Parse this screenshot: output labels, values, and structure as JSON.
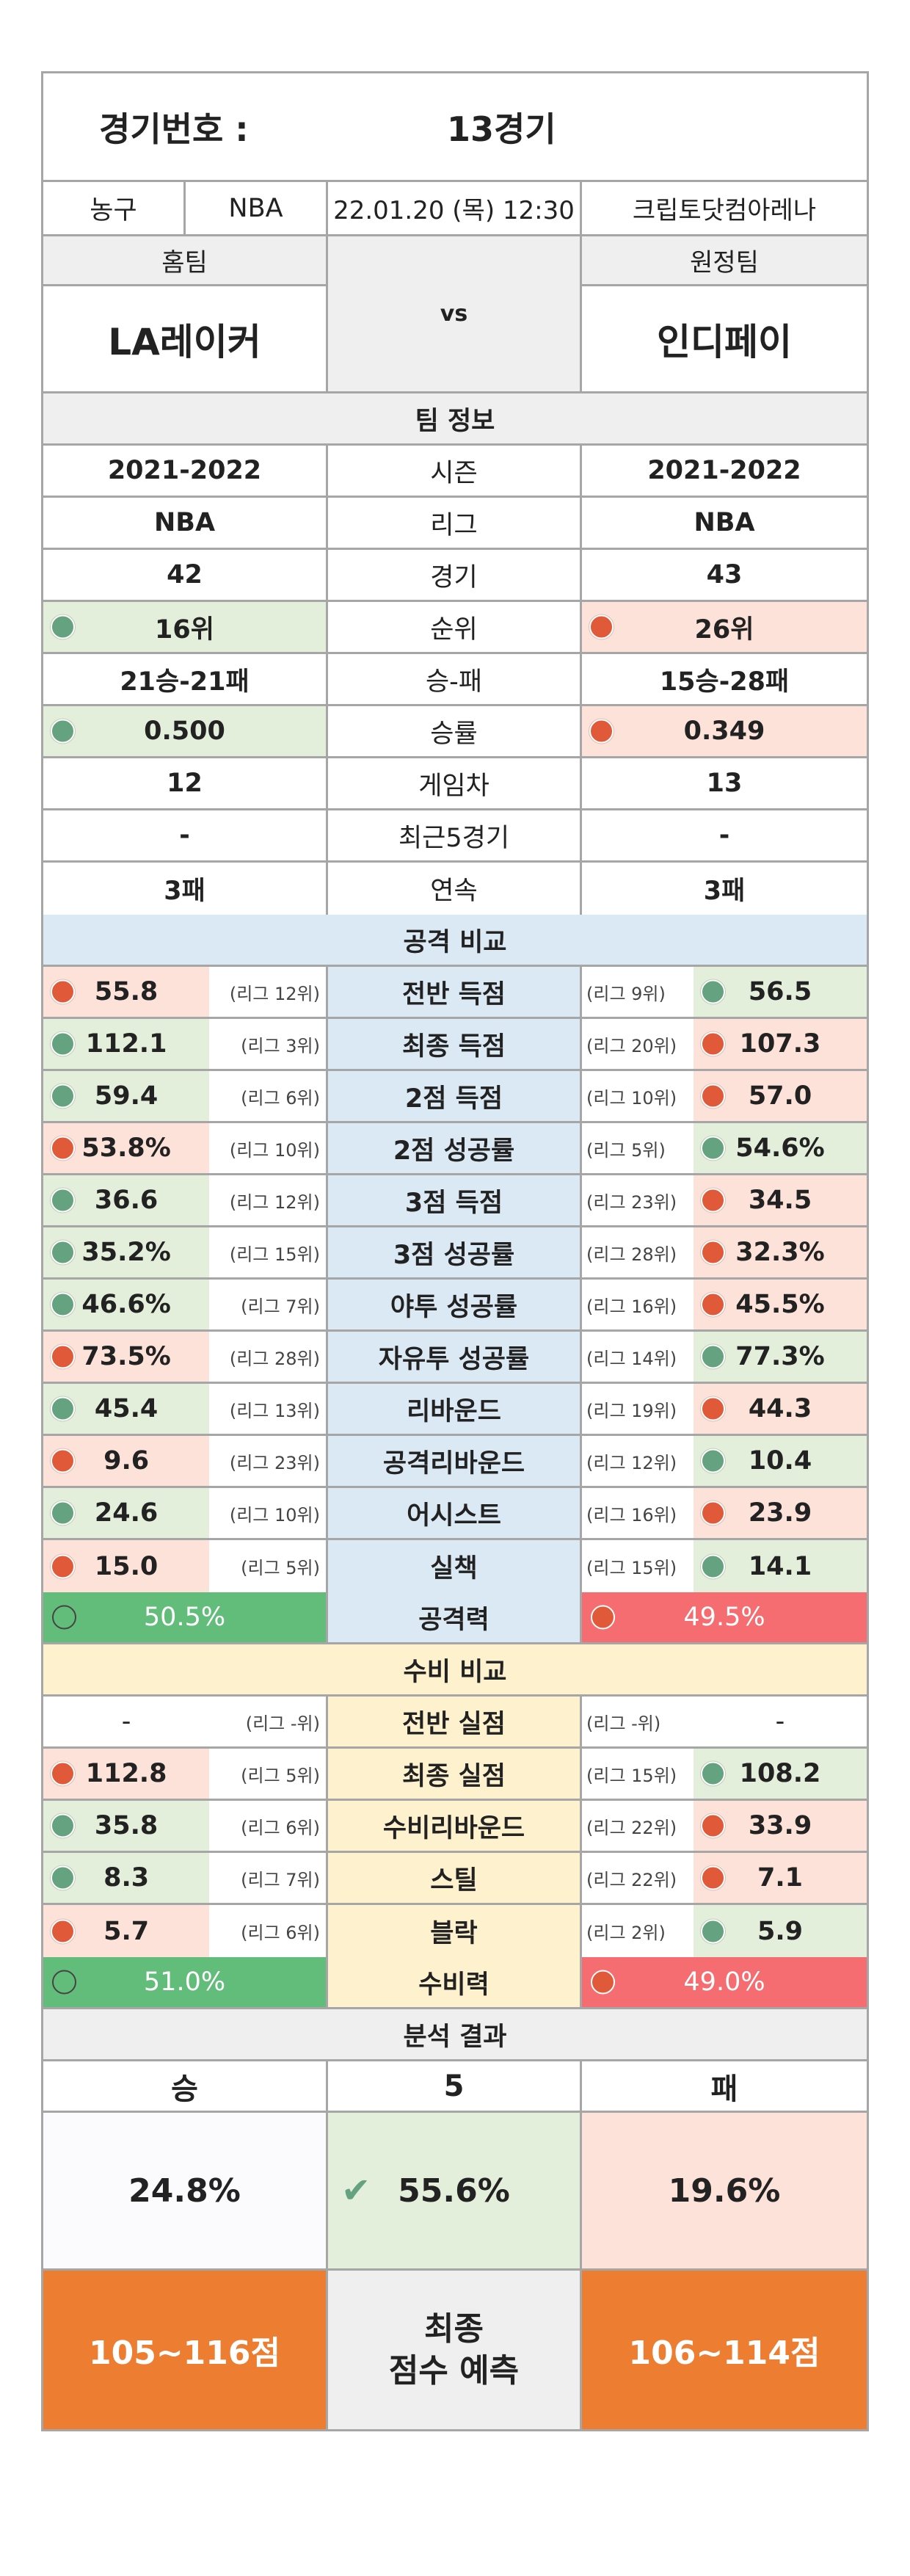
{
  "header": {
    "label": "경기번호 :",
    "game": "13경기"
  },
  "info": {
    "sport": "농구",
    "league": "NBA",
    "datetime": "22.01.20 (목) 12:30",
    "venue": "크립토닷컴아레나"
  },
  "teams": {
    "home_label": "홈팀",
    "away_label": "원정팀",
    "home": "LA레이커",
    "away": "인디페이",
    "vs": "vs"
  },
  "team_info": {
    "title": "팀 정보",
    "rows": [
      {
        "home": "2021-2022",
        "label": "시즌",
        "away": "2021-2022"
      },
      {
        "home": "NBA",
        "label": "리그",
        "away": "NBA"
      },
      {
        "home": "42",
        "label": "경기",
        "away": "43"
      },
      {
        "home": "16위",
        "label": "순위",
        "away": "26위",
        "home_color": "green",
        "away_color": "red"
      },
      {
        "home": "21승-21패",
        "label": "승-패",
        "away": "15승-28패"
      },
      {
        "home": "0.500",
        "label": "승률",
        "away": "0.349",
        "home_color": "green",
        "away_color": "red"
      },
      {
        "home": "12",
        "label": "게임차",
        "away": "13"
      },
      {
        "home": "-",
        "label": "최근5경기",
        "away": "-"
      },
      {
        "home": "3패",
        "label": "연속",
        "away": "3패"
      }
    ]
  },
  "attack": {
    "title": "공격 비교",
    "rows": [
      {
        "label": "전반 득점",
        "home": "55.8",
        "home_rank": "(리그 12위)",
        "home_color": "red",
        "away": "56.5",
        "away_rank": "(리그 9위)",
        "away_color": "green"
      },
      {
        "label": "최종 득점",
        "home": "112.1",
        "home_rank": "(리그 3위)",
        "home_color": "green",
        "away": "107.3",
        "away_rank": "(리그 20위)",
        "away_color": "red"
      },
      {
        "label": "2점 득점",
        "home": "59.4",
        "home_rank": "(리그 6위)",
        "home_color": "green",
        "away": "57.0",
        "away_rank": "(리그 10위)",
        "away_color": "red"
      },
      {
        "label": "2점 성공률",
        "home": "53.8%",
        "home_rank": "(리그 10위)",
        "home_color": "red",
        "away": "54.6%",
        "away_rank": "(리그 5위)",
        "away_color": "green"
      },
      {
        "label": "3점 득점",
        "home": "36.6",
        "home_rank": "(리그 12위)",
        "home_color": "green",
        "away": "34.5",
        "away_rank": "(리그 23위)",
        "away_color": "red"
      },
      {
        "label": "3점 성공률",
        "home": "35.2%",
        "home_rank": "(리그 15위)",
        "home_color": "green",
        "away": "32.3%",
        "away_rank": "(리그 28위)",
        "away_color": "red"
      },
      {
        "label": "야투 성공률",
        "home": "46.6%",
        "home_rank": "(리그 7위)",
        "home_color": "green",
        "away": "45.5%",
        "away_rank": "(리그 16위)",
        "away_color": "red"
      },
      {
        "label": "자유투 성공률",
        "home": "73.5%",
        "home_rank": "(리그 28위)",
        "home_color": "red",
        "away": "77.3%",
        "away_rank": "(리그 14위)",
        "away_color": "green"
      },
      {
        "label": "리바운드",
        "home": "45.4",
        "home_rank": "(리그 13위)",
        "home_color": "green",
        "away": "44.3",
        "away_rank": "(리그 19위)",
        "away_color": "red"
      },
      {
        "label": "공격리바운드",
        "home": "9.6",
        "home_rank": "(리그 23위)",
        "home_color": "red",
        "away": "10.4",
        "away_rank": "(리그 12위)",
        "away_color": "green"
      },
      {
        "label": "어시스트",
        "home": "24.6",
        "home_rank": "(리그 10위)",
        "home_color": "green",
        "away": "23.9",
        "away_rank": "(리그 16위)",
        "away_color": "red"
      },
      {
        "label": "실책",
        "home": "15.0",
        "home_rank": "(리그 5위)",
        "home_color": "red",
        "away": "14.1",
        "away_rank": "(리그 15위)",
        "away_color": "green"
      }
    ],
    "total": {
      "label": "공격력",
      "home": "50.5%",
      "away": "49.5%"
    }
  },
  "defense": {
    "title": "수비 비교",
    "rows": [
      {
        "label": "전반 실점",
        "home": "-",
        "home_rank": "(리그 -위)",
        "home_color": "none",
        "away": "-",
        "away_rank": "(리그 -위)",
        "away_color": "none"
      },
      {
        "label": "최종 실점",
        "home": "112.8",
        "home_rank": "(리그 5위)",
        "home_color": "red",
        "away": "108.2",
        "away_rank": "(리그 15위)",
        "away_color": "green"
      },
      {
        "label": "수비리바운드",
        "home": "35.8",
        "home_rank": "(리그 6위)",
        "home_color": "green",
        "away": "33.9",
        "away_rank": "(리그 22위)",
        "away_color": "red"
      },
      {
        "label": "스틸",
        "home": "8.3",
        "home_rank": "(리그 7위)",
        "home_color": "green",
        "away": "7.1",
        "away_rank": "(리그 22위)",
        "away_color": "red"
      },
      {
        "label": "블락",
        "home": "5.7",
        "home_rank": "(리그 6위)",
        "home_color": "red",
        "away": "5.9",
        "away_rank": "(리그 2위)",
        "away_color": "green"
      }
    ],
    "total": {
      "label": "수비력",
      "home": "51.0%",
      "away": "49.0%"
    }
  },
  "result": {
    "title": "분석 결과",
    "win_label": "승",
    "mid_label": "5",
    "lose_label": "패",
    "win_pct": "24.8%",
    "mid_pct": "55.6%",
    "lose_pct": "19.6%",
    "home_score": "105~116점",
    "forecast_line1": "최종",
    "forecast_line2": "점수 예측",
    "away_score": "106~114점"
  },
  "colors": {
    "green": "#65a280",
    "red": "#e05a3a",
    "orange": "#ed7d31",
    "bar_green": "#63bd7a",
    "bar_red": "#f56d70"
  }
}
